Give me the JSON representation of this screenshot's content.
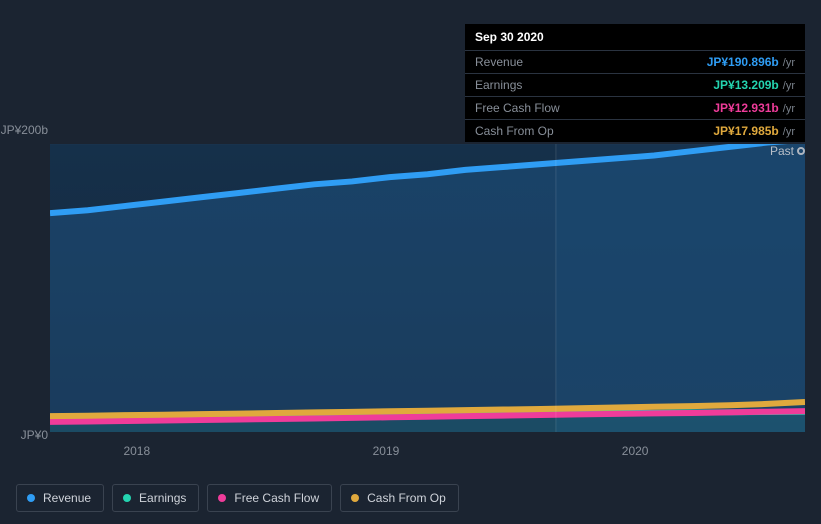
{
  "tooltip": {
    "date": "Sep 30 2020",
    "rows": [
      {
        "label": "Revenue",
        "value": "JP¥190.896b",
        "unit": "/yr",
        "color": "#2f9df4"
      },
      {
        "label": "Earnings",
        "value": "JP¥13.209b",
        "unit": "/yr",
        "color": "#24d4b0"
      },
      {
        "label": "Free Cash Flow",
        "value": "JP¥12.931b",
        "unit": "/yr",
        "color": "#ef3c9a"
      },
      {
        "label": "Cash From Op",
        "value": "JP¥17.985b",
        "unit": "/yr",
        "color": "#e0a93d"
      }
    ]
  },
  "chart": {
    "type": "area",
    "background_color": "#1b2431",
    "plot_gradient_top": "#15304a",
    "plot_gradient_bottom": "#17273b",
    "gridline_color": "rgba(255,255,255,0.04)",
    "y_axis": {
      "min": 0,
      "max": 200,
      "unit_label_top": "JP¥200b",
      "unit_label_bottom": "JP¥0",
      "label_fontsize": 12,
      "label_color": "#888f99"
    },
    "x_axis": {
      "ticks": [
        {
          "label": "2018",
          "pos": 0.115
        },
        {
          "label": "2019",
          "pos": 0.445
        },
        {
          "label": "2020",
          "pos": 0.775
        }
      ],
      "label_fontsize": 12,
      "label_color": "#888f99"
    },
    "hover_x": 0.67,
    "hover_band_color": "#1a3654",
    "past_label": "Past",
    "series": [
      {
        "name": "Revenue",
        "color": "#2f9df4",
        "line_width": 2,
        "fill_opacity": 0.18,
        "values": [
          152,
          154,
          157,
          160,
          163,
          166,
          169,
          172,
          174,
          177,
          179,
          182,
          184,
          186,
          188,
          190,
          192,
          195,
          198,
          201,
          203
        ]
      },
      {
        "name": "Earnings",
        "color": "#24d4b0",
        "line_width": 2,
        "fill_opacity": 0.1,
        "values": [
          9,
          9.3,
          9.6,
          10,
          10.3,
          10.6,
          11,
          11.3,
          11.6,
          12,
          12.2,
          12.5,
          12.7,
          12.9,
          13.1,
          13.2,
          13.3,
          13.5,
          13.7,
          13.9,
          14.1
        ]
      },
      {
        "name": "Free Cash Flow",
        "color": "#ef3c9a",
        "line_width": 2,
        "fill_opacity": 0.0,
        "values": [
          7,
          7.3,
          7.6,
          8,
          8.3,
          8.7,
          9,
          9.4,
          9.8,
          10.2,
          10.6,
          11,
          11.4,
          11.8,
          12.2,
          12.6,
          12.9,
          13.2,
          13.6,
          14.1,
          14.5
        ]
      },
      {
        "name": "Cash From Op",
        "color": "#e0a93d",
        "line_width": 2,
        "fill_opacity": 0.0,
        "values": [
          11,
          11.3,
          11.7,
          12,
          12.4,
          12.8,
          13.2,
          13.6,
          14,
          14.4,
          14.8,
          15.2,
          15.6,
          16,
          16.5,
          17,
          17.5,
          18,
          18.6,
          19.5,
          20.8
        ]
      }
    ]
  },
  "legend": {
    "items": [
      {
        "label": "Revenue",
        "color": "#2f9df4"
      },
      {
        "label": "Earnings",
        "color": "#24d4b0"
      },
      {
        "label": "Free Cash Flow",
        "color": "#ef3c9a"
      },
      {
        "label": "Cash From Op",
        "color": "#e0a93d"
      }
    ],
    "pill_border_color": "#3a4350",
    "pill_text_color": "#cfd3da"
  }
}
